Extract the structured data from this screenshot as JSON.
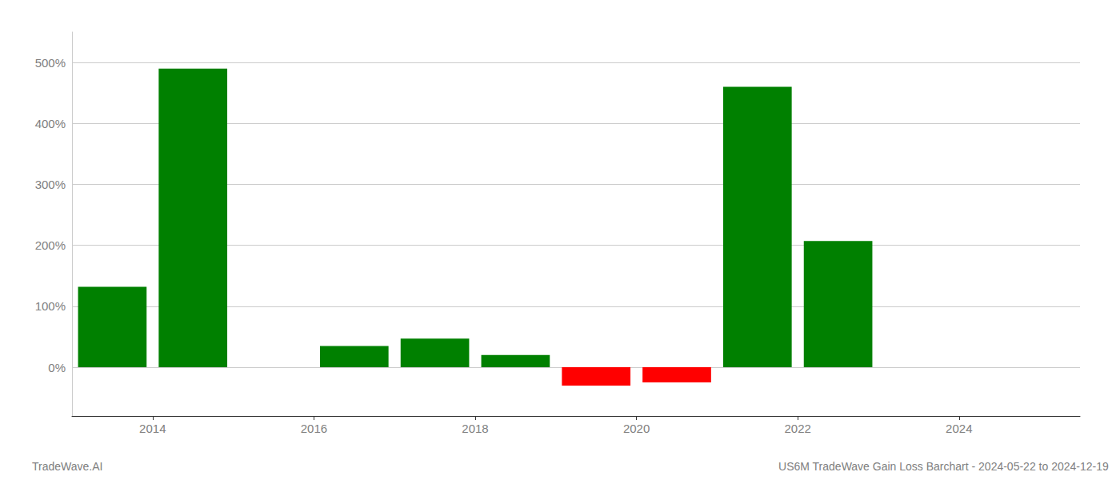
{
  "chart_data": {
    "type": "bar",
    "x": [
      2013.5,
      2014.5,
      2015.5,
      2016.5,
      2017.5,
      2018.5,
      2019.5,
      2020.5,
      2021.5,
      2022.5,
      2023.5
    ],
    "values": [
      132,
      490,
      0,
      35,
      47,
      20,
      -30,
      -25,
      460,
      207,
      0
    ],
    "colors": [
      "#008000",
      "#008000",
      "#008000",
      "#008000",
      "#008000",
      "#008000",
      "#ff0000",
      "#ff0000",
      "#008000",
      "#008000",
      "#008000"
    ],
    "xlim": [
      2013.0,
      2025.5
    ],
    "xticks": [
      2014,
      2016,
      2018,
      2020,
      2022,
      2024
    ],
    "ylim": [
      -80,
      550
    ],
    "yticks": [
      {
        "value": 0,
        "label": "0%"
      },
      {
        "value": 100,
        "label": "100%"
      },
      {
        "value": 200,
        "label": "200%"
      },
      {
        "value": 300,
        "label": "300%"
      },
      {
        "value": 400,
        "label": "400%"
      },
      {
        "value": 500,
        "label": "500%"
      }
    ],
    "grid": true,
    "annotations": [
      "TradeWave.AI",
      "US6M TradeWave Gain Loss Barchart - 2024-05-22 to 2024-12-19"
    ]
  }
}
